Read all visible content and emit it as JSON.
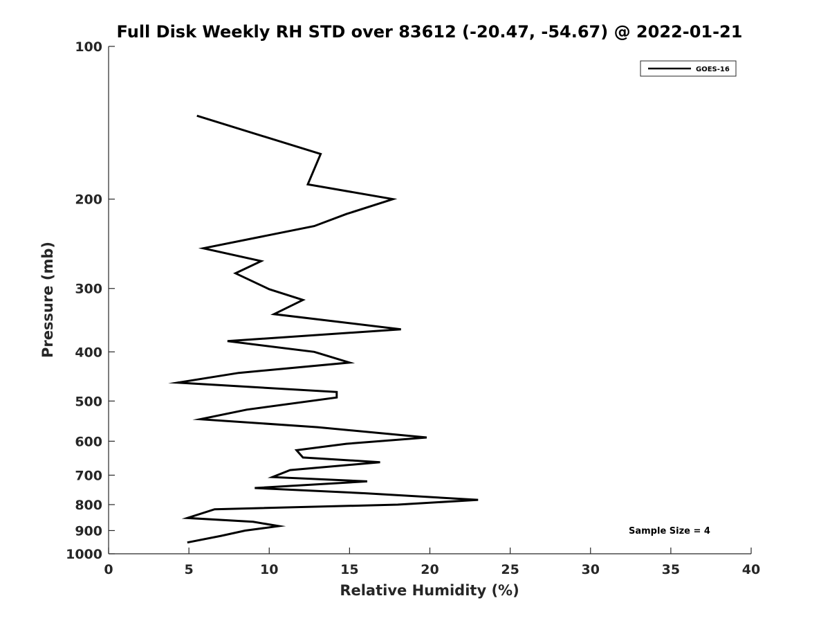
{
  "chart_data": {
    "type": "line",
    "title": "Full Disk Weekly RH STD over 83612 (-20.47, -54.67) @ 2022-01-21",
    "xlabel": "Relative Humidity (%)",
    "ylabel": "Pressure (mb)",
    "xlim": [
      0,
      40
    ],
    "ylim": [
      100,
      1000
    ],
    "y_scale": "log",
    "y_reversed": true,
    "x_ticks": [
      0,
      5,
      10,
      15,
      20,
      25,
      30,
      35,
      40
    ],
    "x_tick_labels": [
      "0",
      "5",
      "10",
      "15",
      "20",
      "25",
      "30",
      "35",
      "40"
    ],
    "y_ticks": [
      100,
      200,
      300,
      400,
      500,
      600,
      700,
      800,
      900,
      1000
    ],
    "y_tick_labels": [
      "100",
      "200",
      "300",
      "400",
      "500",
      "600",
      "700",
      "800",
      "900",
      "1000"
    ],
    "grid": false,
    "legend_position": "top-right",
    "series": [
      {
        "name": "GOES-16",
        "color": "#000000",
        "points": [
          [
            5.5,
            137
          ],
          [
            13.2,
            163
          ],
          [
            12.4,
            187
          ],
          [
            17.7,
            200
          ],
          [
            14.8,
            214
          ],
          [
            12.8,
            226
          ],
          [
            5.9,
            250
          ],
          [
            9.5,
            265
          ],
          [
            7.9,
            280
          ],
          [
            10.0,
            301
          ],
          [
            12.1,
            316
          ],
          [
            10.3,
            337
          ],
          [
            18.2,
            361
          ],
          [
            7.4,
            381
          ],
          [
            12.8,
            400
          ],
          [
            15.0,
            420
          ],
          [
            8.1,
            440
          ],
          [
            4.3,
            460
          ],
          [
            14.2,
            480
          ],
          [
            14.2,
            492
          ],
          [
            8.6,
            520
          ],
          [
            5.7,
            543
          ],
          [
            13.0,
            563
          ],
          [
            19.8,
            590
          ],
          [
            14.8,
            607
          ],
          [
            11.7,
            625
          ],
          [
            12.1,
            646
          ],
          [
            16.9,
            660
          ],
          [
            11.3,
            684
          ],
          [
            10.2,
            706
          ],
          [
            16.1,
            720
          ],
          [
            9.1,
            742
          ],
          [
            16.0,
            760
          ],
          [
            23.0,
            783
          ],
          [
            18.0,
            800
          ],
          [
            6.6,
            817
          ],
          [
            4.9,
            850
          ],
          [
            9.0,
            865
          ],
          [
            10.6,
            882
          ],
          [
            8.5,
            900
          ],
          [
            7.0,
            922
          ],
          [
            4.9,
            950
          ]
        ]
      }
    ],
    "annotations": [
      "Sample Size = 4"
    ]
  }
}
